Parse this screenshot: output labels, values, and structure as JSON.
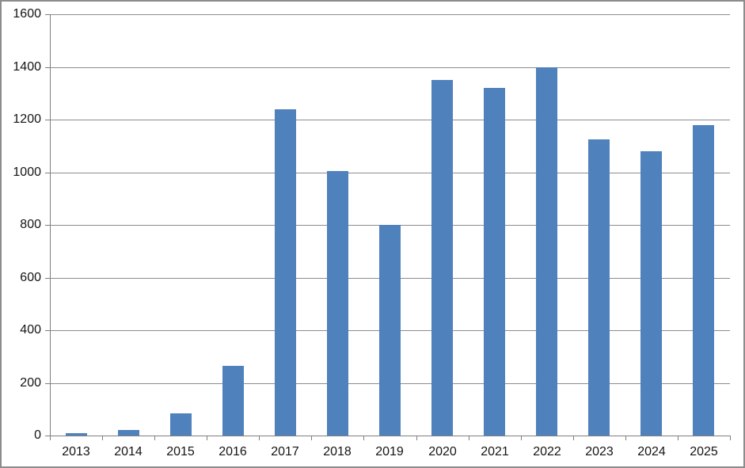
{
  "chart_data": {
    "type": "bar",
    "title": "",
    "xlabel": "",
    "ylabel": "",
    "categories": [
      "2013",
      "2014",
      "2015",
      "2016",
      "2017",
      "2018",
      "2019",
      "2020",
      "2021",
      "2022",
      "2023",
      "2024",
      "2025"
    ],
    "series": [
      {
        "name": "",
        "values": [
          10,
          20,
          85,
          265,
          1240,
          1005,
          800,
          1350,
          1320,
          1400,
          1125,
          1080,
          1180
        ]
      }
    ],
    "ylim": [
      0,
      1600
    ],
    "y_ticks": [
      0,
      200,
      400,
      600,
      800,
      1000,
      1200,
      1400,
      1600
    ],
    "grid": true,
    "legend": false,
    "colors": {
      "bar": "#4f81bd",
      "gridline": "#8c8c8c",
      "axis": "#7f7f7f",
      "chart_border": "#8c8c8c",
      "background": "#ffffff",
      "tick_label": "#141414"
    }
  }
}
